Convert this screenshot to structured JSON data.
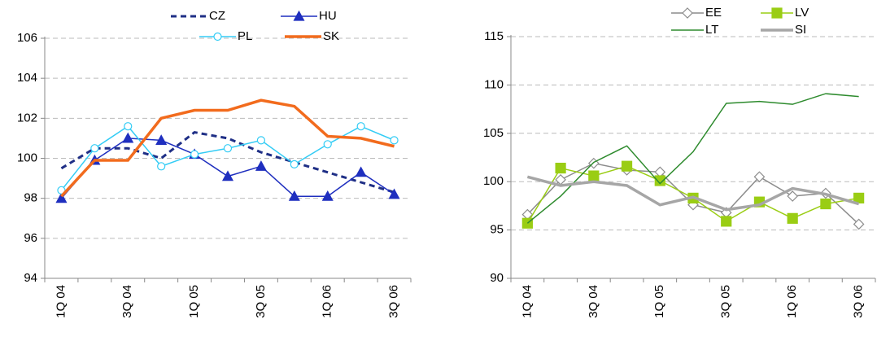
{
  "chart_data": [
    {
      "type": "line",
      "categories": [
        "1Q 04",
        null,
        "3Q 04",
        null,
        "1Q 05",
        null,
        "3Q 05",
        null,
        "1Q 06",
        null,
        "3Q 06"
      ],
      "ylim": [
        94,
        106
      ],
      "yticks": [
        94,
        96,
        98,
        100,
        102,
        104,
        106
      ],
      "grid": true,
      "series": [
        {
          "name": "CZ",
          "color": "#1f2f86",
          "dash": true,
          "marker": "none",
          "width": 3,
          "values": [
            99.5,
            100.5,
            100.5,
            100.0,
            101.3,
            101.0,
            100.3,
            99.8,
            99.3,
            98.8,
            98.3
          ]
        },
        {
          "name": "HU",
          "color": "#1f2fbf",
          "marker": "triangle",
          "width": 1.5,
          "values": [
            98.0,
            99.9,
            101.0,
            100.9,
            100.2,
            99.1,
            99.6,
            98.1,
            98.1,
            99.3,
            98.2
          ]
        },
        {
          "name": "PL",
          "color": "#33ccf5",
          "marker": "circle",
          "width": 1.5,
          "values": [
            98.4,
            100.5,
            101.6,
            99.6,
            100.2,
            100.5,
            100.9,
            99.7,
            100.7,
            101.6,
            100.9
          ]
        },
        {
          "name": "SK",
          "color": "#f26b1d",
          "marker": "none",
          "width": 3.5,
          "values": [
            98.1,
            99.9,
            99.9,
            102.0,
            102.4,
            102.4,
            102.9,
            102.6,
            101.1,
            101.0,
            100.6
          ]
        }
      ]
    },
    {
      "type": "line",
      "categories": [
        "1Q 04",
        null,
        "3Q 04",
        null,
        "1Q 05",
        null,
        "3Q 05",
        null,
        "1Q 06",
        null,
        "3Q 06"
      ],
      "ylim": [
        90,
        115
      ],
      "yticks": [
        90,
        95,
        100,
        105,
        110,
        115
      ],
      "grid": true,
      "series": [
        {
          "name": "EE",
          "color": "#8c8c8c",
          "marker": "diamond",
          "width": 1.5,
          "values": [
            96.6,
            100.2,
            101.9,
            101.2,
            101.0,
            97.6,
            96.8,
            100.5,
            98.5,
            98.8,
            95.6
          ]
        },
        {
          "name": "LV",
          "color": "#9acd14",
          "marker": "square",
          "width": 1.5,
          "values": [
            95.7,
            101.4,
            100.6,
            101.6,
            100.1,
            98.3,
            95.9,
            97.9,
            96.2,
            97.7,
            98.3
          ]
        },
        {
          "name": "LT",
          "color": "#2e8b2e",
          "marker": "none",
          "width": 1.5,
          "values": [
            95.7,
            98.5,
            102.0,
            103.7,
            99.8,
            103.1,
            108.1,
            108.3,
            108.0,
            109.1,
            108.8
          ]
        },
        {
          "name": "SI",
          "color": "#a6a6a6",
          "marker": "none",
          "width": 3.5,
          "values": [
            100.5,
            99.6,
            100.0,
            99.6,
            97.6,
            98.4,
            97.1,
            97.6,
            99.3,
            98.7,
            97.7
          ]
        }
      ]
    }
  ]
}
